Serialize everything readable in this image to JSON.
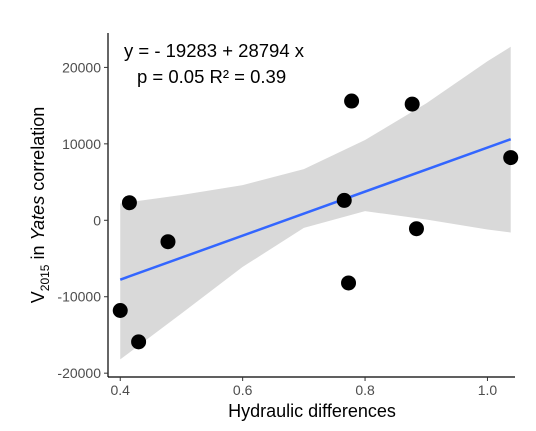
{
  "chart_data": {
    "type": "scatter",
    "title": "",
    "xlabel": "Hydraulic differences",
    "ylabel_parts": {
      "pre": "V",
      "sub": "2015",
      "mid": " in ",
      "italic": "Yates",
      "post": " correlation"
    },
    "xlim": [
      0.38,
      1.045
    ],
    "ylim": [
      -20500,
      24500
    ],
    "x_ticks": [
      0.4,
      0.6,
      0.8,
      1.0
    ],
    "x_tick_labels": [
      "0.4",
      "0.6",
      "0.8",
      "1.0"
    ],
    "y_ticks": [
      -20000,
      -10000,
      0,
      10000,
      20000
    ],
    "y_tick_labels": [
      "-20000",
      "-10000",
      "0",
      "10000",
      "20000"
    ],
    "grid": false,
    "legend": "none",
    "points": [
      {
        "x": 0.4,
        "y": -11800
      },
      {
        "x": 0.415,
        "y": 2300
      },
      {
        "x": 0.43,
        "y": -15900
      },
      {
        "x": 0.478,
        "y": -2800
      },
      {
        "x": 0.766,
        "y": 2600
      },
      {
        "x": 0.773,
        "y": -8200
      },
      {
        "x": 0.778,
        "y": 15600
      },
      {
        "x": 0.877,
        "y": 15200
      },
      {
        "x": 0.884,
        "y": -1100
      },
      {
        "x": 1.038,
        "y": 8200
      }
    ],
    "fit": {
      "intercept": -19283,
      "slope": 28794,
      "x_range": [
        0.4,
        1.038
      ]
    },
    "ci_band": {
      "x": [
        0.4,
        0.5,
        0.6,
        0.7,
        0.8,
        0.9,
        1.0,
        1.038
      ],
      "upper": [
        2200,
        3300,
        4600,
        6700,
        10500,
        15300,
        20800,
        22700
      ],
      "lower": [
        -18200,
        -12200,
        -6100,
        -1000,
        1200,
        100,
        -1200,
        -1600
      ]
    },
    "annotations": [
      "y = - 19283 + 28794 x",
      "p = 0.05 R² = 0.39"
    ],
    "colors": {
      "points": "#000000",
      "fit_line": "#3366ff",
      "band": "#d9d9d9",
      "axis": "#000000",
      "tick_label": "#4d4d4d"
    }
  }
}
